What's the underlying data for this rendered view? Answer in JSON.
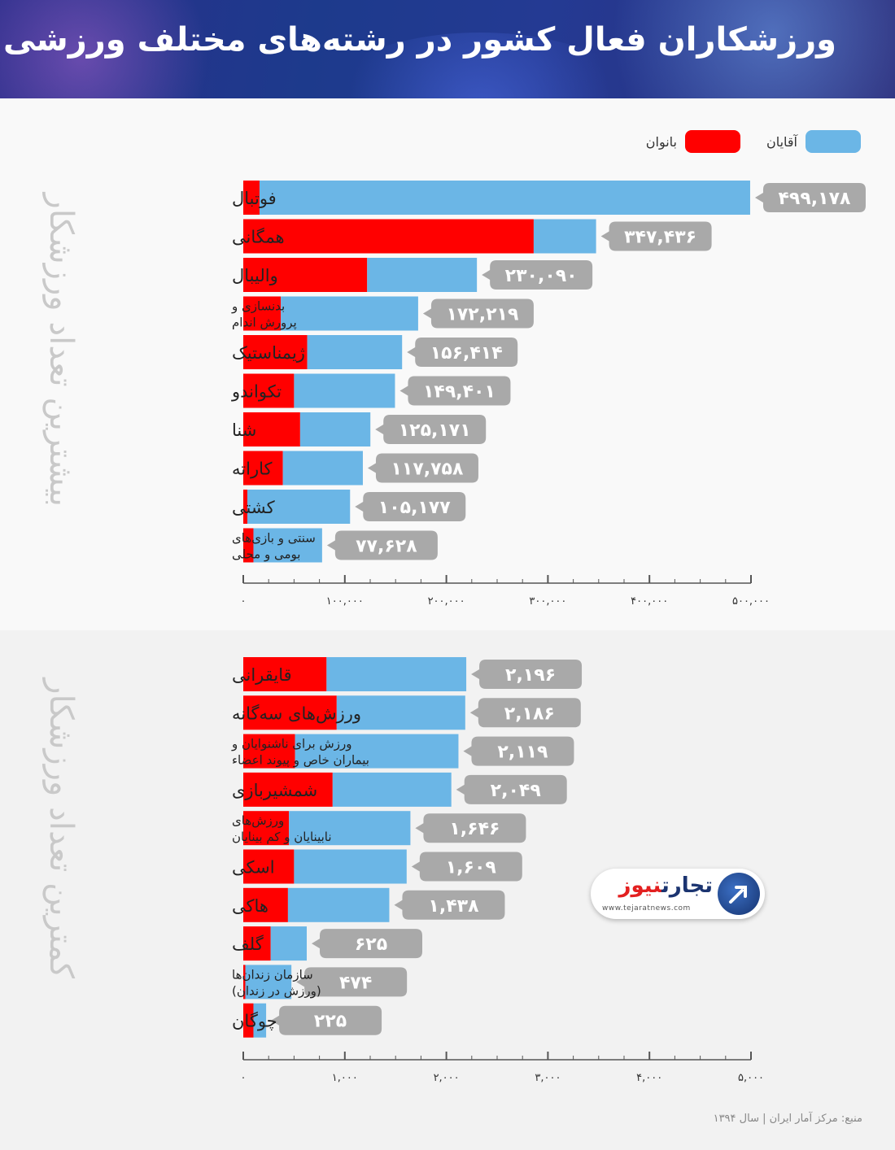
{
  "title": "ورزشکاران فعال کشور در رشته‌های مختلف ورزشی",
  "legend": {
    "men_label": "آقایان",
    "women_label": "بانوان"
  },
  "colors": {
    "men": "#6bb6e6",
    "women": "#ff0000",
    "value_box": "#a9a9a9",
    "axis": "#555555"
  },
  "source": "منبع: مرکز آمار ایران | سال ۱۳۹۴",
  "logo": {
    "name_part1": "تجارت",
    "name_part2": "نیوز",
    "url": "www.tejaratnews.com"
  },
  "chart_data": [
    {
      "type": "bar",
      "orientation": "horizontal",
      "stacked": true,
      "title": "بیشترین تعداد ورزشکار",
      "categories": [
        "فوتبال",
        "همگانی",
        "والیبال",
        "بدنسازی و\nپرورش اندام",
        "ژیمناستیک",
        "تکواندو",
        "شنا",
        "کاراته",
        "کشتی",
        "سنتی و بازی‌های\nبومی و محلی"
      ],
      "totals": [
        499178,
        347436,
        230090,
        172219,
        156414,
        149401,
        125171,
        117758,
        105177,
        77628
      ],
      "total_labels": [
        "۴۹۹,۱۷۸",
        "۳۴۷,۴۳۶",
        "۲۳۰,۰۹۰",
        "۱۷۲,۲۱۹",
        "۱۵۶,۴۱۴",
        "۱۴۹,۴۰۱",
        "۱۲۵,۱۷۱",
        "۱۱۷,۷۵۸",
        "۱۰۵,۱۷۷",
        "۷۷,۶۲۸"
      ],
      "series": [
        {
          "name": "بانوان",
          "values": [
            16000,
            286000,
            122000,
            37000,
            63000,
            50000,
            56000,
            39000,
            4000,
            10000
          ]
        },
        {
          "name": "آقایان",
          "values": [
            483178,
            61436,
            108090,
            135219,
            93414,
            99401,
            69171,
            78758,
            101177,
            67628
          ]
        }
      ],
      "xlim": [
        0,
        500000
      ],
      "xticks": [
        0,
        100000,
        200000,
        300000,
        400000,
        500000
      ],
      "xtick_labels": [
        "۰",
        "۱۰۰,۰۰۰",
        "۲۰۰,۰۰۰",
        "۳۰۰,۰۰۰",
        "۴۰۰,۰۰۰",
        "۵۰۰,۰۰۰"
      ]
    },
    {
      "type": "bar",
      "orientation": "horizontal",
      "stacked": true,
      "title": "کمترین تعداد ورزشکار",
      "categories": [
        "قایقرانی",
        "ورزش‌های سه‌گانه",
        "ورزش برای ناشنوایان و\nبیماران خاص و پیوند اعضاء",
        "شمشیربازی",
        "ورزش‌های\nنابینایان و کم بینایان",
        "اسکی",
        "هاکی",
        "گلف",
        "سازمان زندان‌ها\n(ورزش در زندان)",
        "چوگان"
      ],
      "totals": [
        2196,
        2186,
        2119,
        2049,
        1646,
        1609,
        1438,
        625,
        474,
        225
      ],
      "total_labels": [
        "۲,۱۹۶",
        "۲,۱۸۶",
        "۲,۱۱۹",
        "۲,۰۴۹",
        "۱,۶۴۶",
        "۱,۶۰۹",
        "۱,۴۳۸",
        "۶۲۵",
        "۴۷۴",
        "۲۲۵"
      ],
      "series": [
        {
          "name": "بانوان",
          "values": [
            820,
            920,
            510,
            880,
            450,
            500,
            440,
            270,
            20,
            100
          ]
        },
        {
          "name": "آقایان",
          "values": [
            1376,
            1266,
            1609,
            1169,
            1196,
            1109,
            998,
            355,
            454,
            125
          ]
        }
      ],
      "xlim": [
        0,
        5000
      ],
      "xticks": [
        0,
        1000,
        2000,
        3000,
        4000,
        5000
      ],
      "xtick_labels": [
        "۰",
        "۱,۰۰۰",
        "۲,۰۰۰",
        "۳,۰۰۰",
        "۴,۰۰۰",
        "۵,۰۰۰"
      ]
    }
  ]
}
